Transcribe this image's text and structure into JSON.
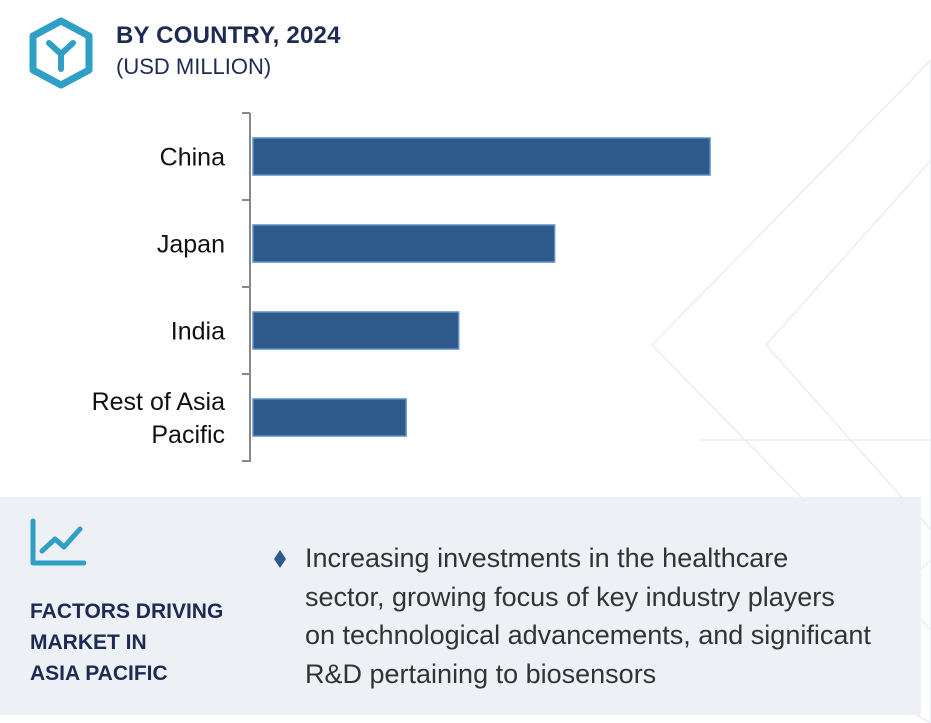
{
  "header": {
    "title": "BY COUNTRY, 2024",
    "subtitle": "(USD MILLION)",
    "logo_icon": "y-hexagon-logo-icon"
  },
  "chart_data": {
    "type": "bar",
    "orientation": "horizontal",
    "title": "BY COUNTRY, 2024",
    "subtitle": "(USD MILLION)",
    "categories": [
      [
        "China"
      ],
      [
        "Japan"
      ],
      [
        "India"
      ],
      [
        "Rest of Asia",
        "Pacific"
      ]
    ],
    "values": [
      100,
      66,
      45,
      33.5
    ],
    "xlim": [
      0,
      100
    ],
    "grid": false,
    "legend": "none",
    "bar_color": "#2d5a8b",
    "bar_border_color": "#5b8fc8",
    "axis_color": "#888888"
  },
  "factors": {
    "icon": "trend-chart-icon",
    "title_lines": [
      "FACTORS DRIVING",
      "MARKET IN",
      "ASIA PACIFIC"
    ],
    "bullet_icon": "diamond-bullet-icon",
    "text_lines": [
      "Increasing investments in the healthcare",
      "sector, growing focus of key industry players",
      "on technological advancements, and significant",
      "R&D pertaining to biosensors"
    ]
  },
  "colors": {
    "accent": "#2f9fc5",
    "heading": "#1d2b52",
    "panel_background": "#edf0f5",
    "bar": "#2d5a8b"
  }
}
